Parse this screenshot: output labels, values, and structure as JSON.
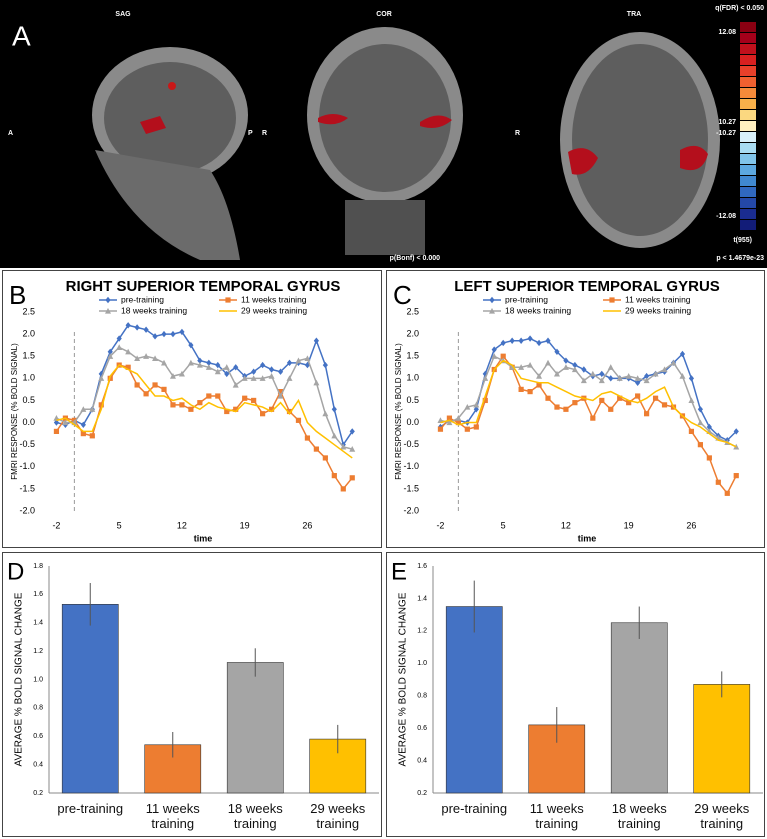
{
  "panel_a": {
    "label": "A",
    "views": [
      "SAG",
      "COR",
      "TRA"
    ],
    "orient": [
      "A",
      "P",
      "R",
      "R"
    ],
    "bonf": "p(Bonf) < 0.000",
    "colorbar_title": "q(FDR) < 0.050",
    "colorbar_labels": [
      "12.08",
      "10.27",
      "-10.27",
      "-12.08"
    ],
    "stat": "t(955)",
    "p_value": "p < 1.4679e-23"
  },
  "chart_data": [
    {
      "type": "line",
      "label": "B",
      "title": "RIGHT SUPERIOR TEMPORAL GYRUS",
      "xlabel": "time",
      "ylabel": "FMRI RESPONSE (% BOLD SIGNAL)",
      "x": [
        -2,
        -1,
        0,
        1,
        2,
        3,
        4,
        5,
        6,
        7,
        8,
        9,
        10,
        11,
        12,
        13,
        14,
        15,
        16,
        17,
        18,
        19,
        20,
        21,
        22,
        23,
        24,
        25,
        26,
        27,
        28,
        29,
        30,
        31
      ],
      "xlim": [
        -3.5,
        32.2
      ],
      "xticks": [
        -2,
        5,
        12,
        19,
        26
      ],
      "vline": 0,
      "ylim": [
        -2.0,
        2.5
      ],
      "yticks": [
        2.5,
        {
          "value": 2,
          "label": "2.0"
        },
        1.5,
        {
          "value": 1,
          "label": "1.0"
        },
        0.5,
        {
          "value": 0,
          "label": "0.0"
        },
        -0.5,
        {
          "value": -1,
          "label": "-1.0"
        },
        -1.5,
        {
          "value": -2,
          "label": "-2.0"
        }
      ],
      "series": [
        {
          "name": "pre-training",
          "color": "#4472c4",
          "marker": "diamond",
          "values": [
            0.0,
            -0.05,
            0.05,
            -0.05,
            0.3,
            1.1,
            1.6,
            1.9,
            2.2,
            2.15,
            2.1,
            1.95,
            2.0,
            2.0,
            2.05,
            1.75,
            1.4,
            1.35,
            1.3,
            1.1,
            1.25,
            1.05,
            1.15,
            1.3,
            1.2,
            1.15,
            1.35,
            1.35,
            1.3,
            1.85,
            1.3,
            0.3,
            -0.5,
            -0.2
          ]
        },
        {
          "name": "11 weeks training",
          "color": "#ed7d31",
          "marker": "square",
          "values": [
            -0.2,
            0.1,
            0.05,
            -0.25,
            -0.3,
            0.4,
            1.0,
            1.3,
            1.25,
            0.85,
            0.65,
            0.85,
            0.75,
            0.4,
            0.4,
            0.3,
            0.45,
            0.6,
            0.6,
            0.25,
            0.3,
            0.55,
            0.5,
            0.2,
            0.3,
            0.7,
            0.25,
            0.05,
            -0.35,
            -0.6,
            -0.8,
            -1.2,
            -1.5,
            -1.25
          ]
        },
        {
          "name": "18 weeks training",
          "color": "#a5a5a5",
          "marker": "triangle",
          "values": [
            0.1,
            0.0,
            0.0,
            0.3,
            0.3,
            1.0,
            1.5,
            1.7,
            1.6,
            1.45,
            1.5,
            1.45,
            1.35,
            1.05,
            1.1,
            1.35,
            1.3,
            1.25,
            1.15,
            1.25,
            0.85,
            1.0,
            1.0,
            1.0,
            1.05,
            0.6,
            1.0,
            1.4,
            1.45,
            0.9,
            0.2,
            -0.3,
            -0.55,
            -0.6
          ]
        },
        {
          "name": "29 weeks training",
          "color": "#ffc000",
          "marker": "none",
          "values": [
            0.05,
            0.1,
            -0.05,
            -0.2,
            -0.2,
            0.3,
            1.05,
            1.3,
            1.2,
            1.1,
            0.85,
            0.6,
            0.6,
            0.5,
            0.55,
            0.4,
            0.3,
            0.45,
            0.35,
            0.3,
            0.25,
            0.45,
            0.4,
            0.35,
            0.25,
            0.45,
            0.2,
            0.5,
            0.0,
            -0.2,
            -0.35,
            -0.5,
            -0.65,
            -0.8
          ]
        }
      ]
    },
    {
      "type": "line",
      "label": "C",
      "title": "LEFT SUPERIOR TEMPORAL GYRUS",
      "xlabel": "time",
      "ylabel": "FMRI RESPONSE (% BOLD SIGNAL)",
      "x": [
        -2,
        -1,
        0,
        1,
        2,
        3,
        4,
        5,
        6,
        7,
        8,
        9,
        10,
        11,
        12,
        13,
        14,
        15,
        16,
        17,
        18,
        19,
        20,
        21,
        22,
        23,
        24,
        25,
        26,
        27,
        28,
        29,
        30,
        31
      ],
      "xlim": [
        -3.5,
        32.2
      ],
      "xticks": [
        -2,
        5,
        12,
        19,
        26
      ],
      "vline": 0,
      "ylim": [
        -2.0,
        2.5
      ],
      "yticks": [
        2.5,
        {
          "value": 2,
          "label": "2.0"
        },
        1.5,
        {
          "value": 1,
          "label": "1.0"
        },
        0.5,
        {
          "value": 0,
          "label": "0.0"
        },
        -0.5,
        {
          "value": -1,
          "label": "-1.0"
        },
        -1.5,
        {
          "value": -2,
          "label": "-2.0"
        }
      ],
      "series": [
        {
          "name": "pre-training",
          "color": "#4472c4",
          "marker": "diamond",
          "values": [
            -0.1,
            0.05,
            0.05,
            0.0,
            0.3,
            1.1,
            1.65,
            1.8,
            1.85,
            1.85,
            1.9,
            1.8,
            1.85,
            1.6,
            1.4,
            1.3,
            1.2,
            1.05,
            1.1,
            1.0,
            1.0,
            1.0,
            0.9,
            1.05,
            1.1,
            1.15,
            1.35,
            1.55,
            1.0,
            0.3,
            -0.1,
            -0.3,
            -0.4,
            -0.2
          ]
        },
        {
          "name": "11 weeks training",
          "color": "#ed7d31",
          "marker": "square",
          "values": [
            -0.15,
            0.1,
            0.0,
            -0.15,
            -0.1,
            0.5,
            1.2,
            1.5,
            1.25,
            0.75,
            0.7,
            0.85,
            0.55,
            0.35,
            0.3,
            0.45,
            0.55,
            0.1,
            0.5,
            0.3,
            0.55,
            0.45,
            0.6,
            0.2,
            0.55,
            0.4,
            0.35,
            0.15,
            -0.2,
            -0.5,
            -0.8,
            -1.35,
            -1.6,
            -1.2
          ]
        },
        {
          "name": "18 weeks training",
          "color": "#a5a5a5",
          "marker": "triangle",
          "values": [
            0.05,
            0.0,
            0.1,
            0.35,
            0.4,
            1.0,
            1.5,
            1.4,
            1.25,
            1.25,
            1.3,
            1.05,
            1.35,
            1.1,
            1.25,
            1.2,
            0.95,
            1.1,
            0.95,
            1.25,
            1.0,
            1.05,
            1.0,
            0.95,
            1.1,
            1.2,
            1.35,
            1.05,
            0.5,
            0.0,
            -0.2,
            -0.35,
            -0.45,
            -0.55
          ]
        },
        {
          "name": "29 weeks training",
          "color": "#ffc000",
          "marker": "none",
          "values": [
            0.0,
            0.05,
            -0.05,
            0.0,
            0.0,
            0.6,
            1.2,
            1.4,
            1.3,
            1.0,
            0.95,
            0.9,
            0.9,
            0.8,
            0.7,
            0.6,
            0.55,
            0.5,
            0.65,
            0.7,
            0.6,
            0.5,
            0.45,
            0.55,
            0.7,
            0.8,
            0.35,
            0.15,
            0.0,
            -0.1,
            -0.25,
            -0.4,
            -0.45,
            -0.55
          ]
        }
      ]
    },
    {
      "type": "bar",
      "label": "D",
      "ylabel": "AVERAGE % BOLD SIGNAL CHANGE",
      "categories": [
        "pre-training",
        "11 weeks training",
        "18 weeks training",
        "29 weeks training"
      ],
      "values": [
        1.53,
        0.54,
        1.12,
        0.58
      ],
      "errors": [
        0.15,
        0.09,
        0.1,
        0.1
      ],
      "colors": [
        "#4472c4",
        "#ed7d31",
        "#a5a5a5",
        "#ffc000"
      ],
      "ylim": [
        0.2,
        1.8
      ],
      "yticks": [
        1.8,
        1.6,
        1.4,
        1.2,
        {
          "value": 1,
          "label": "1.0"
        },
        0.8,
        0.6,
        0.4,
        0.2
      ]
    },
    {
      "type": "bar",
      "label": "E",
      "ylabel": "AVERAGE % BOLD SIGNAL CHANGE",
      "categories": [
        "pre-training",
        "11 weeks training",
        "18 weeks training",
        "29 weeks training"
      ],
      "values": [
        1.35,
        0.62,
        1.25,
        0.87
      ],
      "errors": [
        0.16,
        0.11,
        0.1,
        0.08
      ],
      "colors": [
        "#4472c4",
        "#ed7d31",
        "#a5a5a5",
        "#ffc000"
      ],
      "ylim": [
        0.2,
        1.6
      ],
      "yticks": [
        1.6,
        1.4,
        1.2,
        {
          "value": 1,
          "label": "1.0"
        },
        0.8,
        0.6,
        0.4,
        0.2
      ]
    }
  ]
}
